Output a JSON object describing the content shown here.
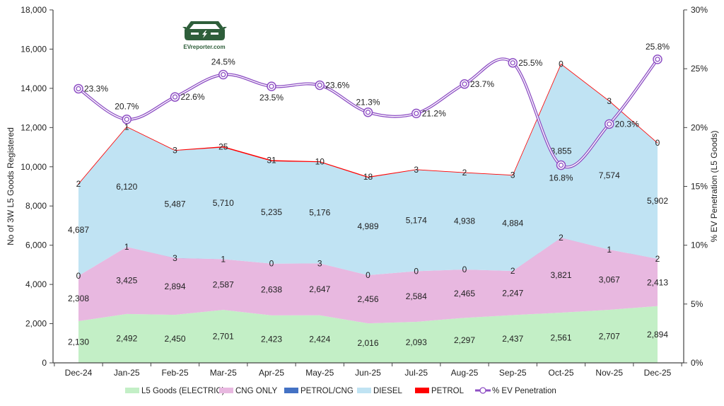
{
  "chart_data": {
    "type": "area",
    "stacked": true,
    "title": "",
    "categories": [
      "Dec-24",
      "Jan-25",
      "Feb-25",
      "Mar-25",
      "Apr-25",
      "May-25",
      "Jun-25",
      "Jul-25",
      "Aug-25",
      "Sep-25",
      "Oct-25",
      "Nov-25",
      "Dec-25"
    ],
    "series": [
      {
        "name": "L5 Goods (ELECTRIC)",
        "color": "#c3efc6",
        "values": [
          2130,
          2492,
          2450,
          2701,
          2423,
          2424,
          2016,
          2093,
          2297,
          2437,
          2561,
          2707,
          2894
        ]
      },
      {
        "name": "CNG ONLY",
        "color": "#e8b8e0",
        "values": [
          2308,
          3425,
          2894,
          2587,
          2638,
          2647,
          2456,
          2584,
          2465,
          2247,
          3821,
          3067,
          2413
        ]
      },
      {
        "name": "PETROL/CNG",
        "color": "#4472c4",
        "values": [
          0,
          1,
          3,
          1,
          0,
          3,
          0,
          0,
          0,
          2,
          2,
          1,
          2
        ]
      },
      {
        "name": "DIESEL",
        "color": "#c0e3f3",
        "values": [
          4687,
          6120,
          5487,
          5710,
          5235,
          5176,
          4989,
          5174,
          4938,
          4884,
          8855,
          7574,
          5902
        ]
      },
      {
        "name": "PETROL",
        "color": "#ff0000",
        "values": [
          2,
          1,
          3,
          25,
          31,
          10,
          18,
          3,
          2,
          3,
          0,
          3,
          0
        ]
      }
    ],
    "line_series": {
      "name": "% EV Penetration",
      "axis": "right",
      "color": "#8e4fc4",
      "values": [
        23.3,
        20.7,
        22.6,
        24.5,
        23.5,
        23.6,
        21.3,
        21.2,
        23.7,
        25.5,
        16.8,
        20.3,
        25.8
      ],
      "labels": [
        "23.3%",
        "20.7%",
        "22.6%",
        "24.5%",
        "23.5%",
        "23.6%",
        "21.3%",
        "21.2%",
        "23.7%",
        "25.5%",
        "16.8%",
        "20.3%",
        "25.8%"
      ]
    },
    "ylabel": "No of 3W L5 Goods Registered",
    "ylim": [
      0,
      18000
    ],
    "yticks": [
      0,
      2000,
      4000,
      6000,
      8000,
      10000,
      12000,
      14000,
      16000,
      18000
    ],
    "ytick_labels": [
      "0",
      "2,000",
      "4,000",
      "6,000",
      "8,000",
      "10,000",
      "12,000",
      "14,000",
      "16,000",
      "18,000"
    ],
    "y2label": "% EV Penetration (L5 Goods)",
    "y2lim": [
      0,
      30
    ],
    "y2ticks": [
      0,
      5,
      10,
      15,
      20,
      25,
      30
    ],
    "y2tick_labels": [
      "0%",
      "5%",
      "10%",
      "15%",
      "20%",
      "25%",
      "30%"
    ],
    "grid": false,
    "legend": "bottom"
  },
  "logo": {
    "text": "EVreporter.com",
    "icon": "car-charging-icon"
  }
}
